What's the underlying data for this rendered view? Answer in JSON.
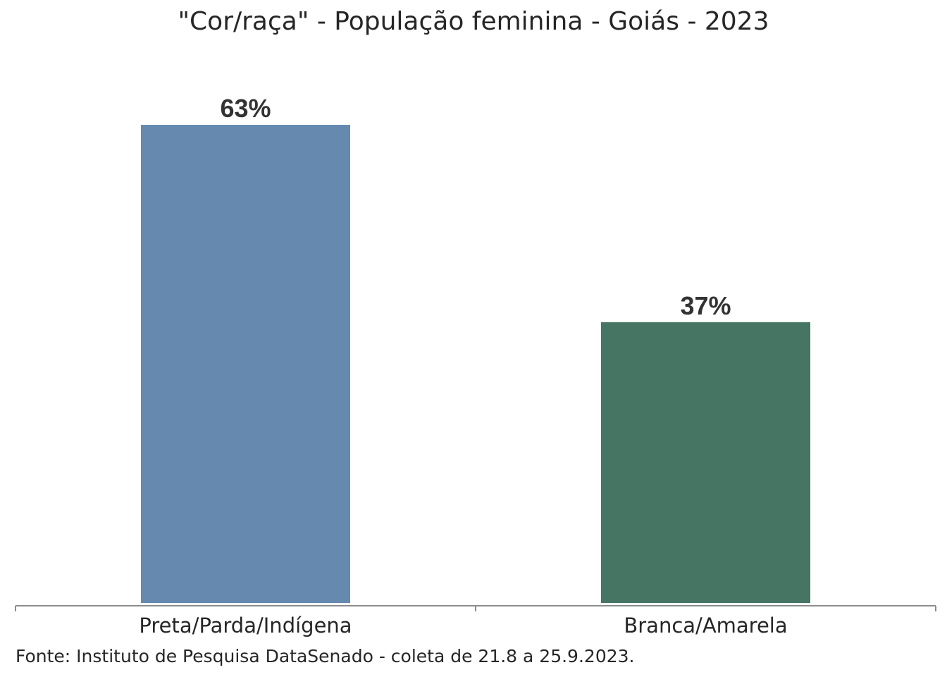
{
  "chart_data": {
    "type": "bar",
    "title": "\"Cor/raça\" - População feminina - Goiás - 2023",
    "categories": [
      "Preta/Parda/Indígena",
      "Branca/Amarela"
    ],
    "values": [
      63,
      37
    ],
    "value_labels": [
      "63%",
      "37%"
    ],
    "colors": [
      "#6689b0",
      "#467564"
    ],
    "ylim": [
      0,
      63
    ],
    "grid": false,
    "legend": "none",
    "source": "Fonte: Instituto de Pesquisa DataSenado - coleta de 21.8 a 25.9.2023."
  }
}
